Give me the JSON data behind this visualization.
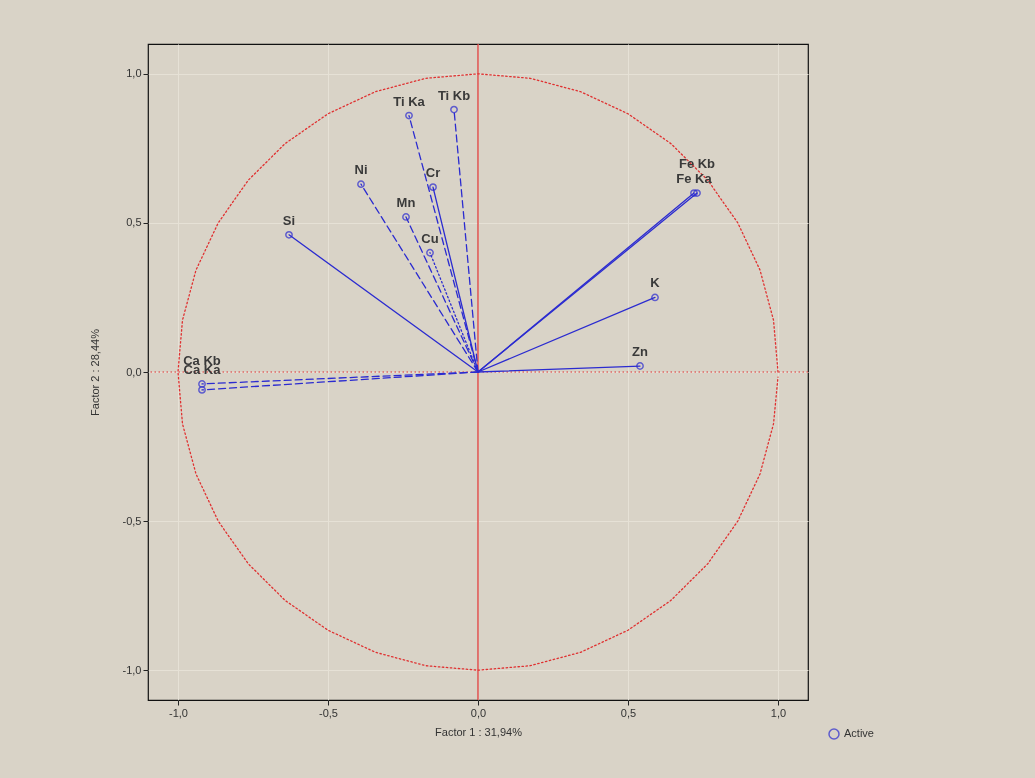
{
  "chart_data": {
    "type": "scatter",
    "xlabel": "Factor 1 : 31,94%",
    "ylabel": "Factor 2 : 28,44%",
    "xlim": [
      -1.1,
      1.1
    ],
    "ylim": [
      -1.1,
      1.1
    ],
    "xticks": [
      {
        "value": -1,
        "label": "-1,0"
      },
      {
        "value": -0.5,
        "label": "-0,5"
      },
      {
        "value": 0,
        "label": "0,0"
      },
      {
        "value": 0.5,
        "label": "0,5"
      },
      {
        "value": 1,
        "label": "1,0"
      }
    ],
    "yticks": [
      {
        "value": -1,
        "label": "-1,0"
      },
      {
        "value": -0.5,
        "label": "-0,5"
      },
      {
        "value": 0,
        "label": "0,0"
      },
      {
        "value": 0.5,
        "label": "0,5"
      },
      {
        "value": 1,
        "label": "1,0"
      }
    ],
    "grid": true,
    "legend": "bottom right",
    "ref_lines": [
      {
        "axis": "x",
        "value": 0,
        "color": "#e03030",
        "line_style": "solid"
      },
      {
        "axis": "y",
        "value": 0,
        "color": "#e03030",
        "line_style": "dotted"
      }
    ],
    "series": [
      {
        "type": "line",
        "color": "#e03030",
        "line_style": "dotted",
        "marker": "none",
        "x": [
          1,
          0.985,
          0.94,
          0.866,
          0.766,
          0.643,
          0.5,
          0.342,
          0.174,
          0,
          -0.174,
          -0.342,
          -0.5,
          -0.643,
          -0.766,
          -0.866,
          -0.94,
          -0.985,
          -1,
          -0.985,
          -0.94,
          -0.866,
          -0.766,
          -0.643,
          -0.5,
          -0.342,
          -0.174,
          0,
          0.174,
          0.342,
          0.5,
          0.643,
          0.766,
          0.866,
          0.94,
          0.985,
          1.0
        ],
        "values": [
          0,
          0.174,
          0.342,
          0.5,
          0.643,
          0.766,
          0.866,
          0.94,
          0.985,
          1,
          0.985,
          0.94,
          0.866,
          0.766,
          0.643,
          0.5,
          0.342,
          0.174,
          0,
          -0.174,
          -0.342,
          -0.5,
          -0.643,
          -0.766,
          -0.866,
          -0.94,
          -0.985,
          -1,
          -0.985,
          -0.94,
          -0.866,
          -0.766,
          -0.643,
          -0.5,
          -0.342,
          -0.174,
          -0.017
        ]
      },
      {
        "type": "line",
        "color": "#2b2bd0",
        "line_style": "dashed",
        "marker": "none",
        "x": [
          0,
          -0.08
        ],
        "values": [
          0,
          0.88
        ]
      },
      {
        "type": "line",
        "color": "#2b2bd0",
        "line_style": "dashed",
        "marker": "none",
        "x": [
          0,
          -0.23
        ],
        "values": [
          0,
          0.86
        ]
      },
      {
        "type": "line",
        "color": "#2b2bd0",
        "line_style": "dashed",
        "marker": "none",
        "x": [
          0,
          -0.39
        ],
        "values": [
          0,
          0.63
        ]
      },
      {
        "type": "line",
        "color": "#2b2bd0",
        "line_style": "solid",
        "marker": "none",
        "x": [
          0,
          -0.15
        ],
        "values": [
          0,
          0.62
        ]
      },
      {
        "type": "line",
        "color": "#2b2bd0",
        "line_style": "dashed",
        "marker": "none",
        "x": [
          0,
          -0.24
        ],
        "values": [
          0,
          0.52
        ]
      },
      {
        "type": "line",
        "color": "#2b2bd0",
        "line_style": "dotted",
        "marker": "none",
        "x": [
          0,
          -0.16
        ],
        "values": [
          0,
          0.4
        ]
      },
      {
        "type": "line",
        "color": "#2b2bd0",
        "line_style": "solid",
        "marker": "none",
        "x": [
          0,
          -0.63
        ],
        "values": [
          0,
          0.46
        ]
      },
      {
        "type": "line",
        "color": "#2b2bd0",
        "line_style": "solid",
        "marker": "none",
        "x": [
          0,
          0.72
        ],
        "values": [
          0,
          0.6
        ]
      },
      {
        "type": "line",
        "color": "#2b2bd0",
        "line_style": "solid",
        "marker": "none",
        "x": [
          0,
          0.73
        ],
        "values": [
          0,
          0.6
        ]
      },
      {
        "type": "line",
        "color": "#2b2bd0",
        "line_style": "solid",
        "marker": "none",
        "x": [
          0,
          0.59
        ],
        "values": [
          0,
          0.25
        ]
      },
      {
        "type": "line",
        "color": "#2b2bd0",
        "line_style": "solid",
        "marker": "none",
        "x": [
          0,
          0.54
        ],
        "values": [
          0,
          0.02
        ]
      },
      {
        "type": "line",
        "color": "#2b2bd0",
        "line_style": "dashed",
        "marker": "none",
        "x": [
          0,
          -0.92
        ],
        "values": [
          0,
          -0.04
        ]
      },
      {
        "type": "line",
        "color": "#2b2bd0",
        "line_style": "dashed",
        "marker": "none",
        "x": [
          0,
          -0.92
        ],
        "values": [
          0,
          -0.06
        ]
      },
      {
        "type": "scatter",
        "name": "Active",
        "color": "#2b2bd0",
        "marker": "circle",
        "x": [
          -0.08,
          -0.23,
          -0.39,
          -0.15,
          -0.24,
          -0.16,
          -0.63,
          0.72,
          0.73,
          0.59,
          0.54,
          -0.92,
          -0.92
        ],
        "values": [
          0.88,
          0.86,
          0.63,
          0.62,
          0.52,
          0.4,
          0.46,
          0.6,
          0.6,
          0.25,
          0.02,
          -0.04,
          -0.06
        ]
      }
    ],
    "annotations": [
      {
        "text": "Ti Kb",
        "x": -0.08,
        "y": 0.88
      },
      {
        "text": "Ti Ka",
        "x": -0.23,
        "y": 0.86
      },
      {
        "text": "Ni",
        "x": -0.39,
        "y": 0.63
      },
      {
        "text": "Cr",
        "x": -0.15,
        "y": 0.62
      },
      {
        "text": "Mn",
        "x": -0.24,
        "y": 0.52
      },
      {
        "text": "Cu",
        "x": -0.16,
        "y": 0.4
      },
      {
        "text": "Si",
        "x": -0.63,
        "y": 0.46
      },
      {
        "text": "Fe Ka",
        "x": 0.72,
        "y": 0.6
      },
      {
        "text": "Fe Kb",
        "x": 0.73,
        "y": 0.6
      },
      {
        "text": "K",
        "x": 0.59,
        "y": 0.25
      },
      {
        "text": "Zn",
        "x": 0.54,
        "y": 0.02
      },
      {
        "text": "Ca Ka",
        "x": -0.92,
        "y": -0.04
      },
      {
        "text": "Ca Kb",
        "x": -0.92,
        "y": -0.06
      }
    ]
  }
}
